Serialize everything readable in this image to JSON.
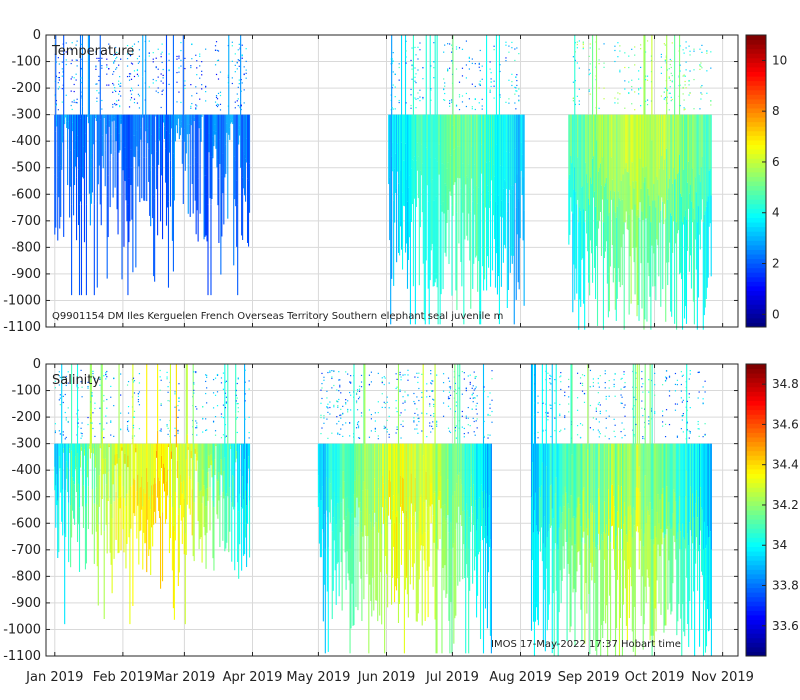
{
  "chart_data": [
    {
      "type": "scatter",
      "variable": "Temperature",
      "title": "Temperature",
      "annotation": "Q9901154 DM Iles Kerguelen French Overseas Territory Southern elephant seal juvenile m",
      "ylabel": "",
      "ylim": [
        -1100,
        0
      ],
      "yticks": [
        0,
        -100,
        -200,
        -300,
        -400,
        -500,
        -600,
        -700,
        -800,
        -900,
        -1000,
        -1100
      ],
      "colorbar": {
        "range": [
          -0.5,
          11
        ],
        "ticks": [
          0,
          2,
          4,
          6,
          8,
          10
        ],
        "colormap": "jet"
      },
      "segments": [
        {
          "name": "deployment-1",
          "start_day": 1,
          "end_day": 90,
          "min_depth": -980,
          "typical_depth": -550,
          "value_shallow": 2.5,
          "value_mid": 2.2,
          "value_deep": 2.0
        },
        {
          "name": "deployment-2",
          "start_day": 153,
          "end_day": 215,
          "min_depth": -1090,
          "typical_depth": -750,
          "value_shallow": 3.0,
          "value_mid": 5.0,
          "value_deep": 4.5
        },
        {
          "name": "deployment-3",
          "start_day": 235,
          "end_day": 300,
          "min_depth": -1110,
          "typical_depth": -850,
          "value_shallow": 4.5,
          "value_mid": 6.0,
          "value_deep": 3.5
        }
      ]
    },
    {
      "type": "scatter",
      "variable": "Salinity",
      "title": "Salinity",
      "annotation": "IMOS 17-May-2022 17:37 Hobart time",
      "ylabel": "",
      "ylim": [
        -1100,
        0
      ],
      "yticks": [
        0,
        -100,
        -200,
        -300,
        -400,
        -500,
        -600,
        -700,
        -800,
        -900,
        -1000,
        -1100
      ],
      "colorbar": {
        "range": [
          33.45,
          34.9
        ],
        "ticks": [
          33.6,
          33.8,
          34,
          34.2,
          34.4,
          34.6,
          34.8
        ],
        "colormap": "jet"
      },
      "segments": [
        {
          "name": "deployment-1",
          "start_day": 1,
          "end_day": 90,
          "min_depth": -980,
          "typical_depth": -550,
          "value_shallow": 33.9,
          "value_mid": 34.35,
          "value_deep": 34.6
        },
        {
          "name": "deployment-2",
          "start_day": 121,
          "end_day": 200,
          "min_depth": -1090,
          "typical_depth": -750,
          "value_shallow": 33.9,
          "value_mid": 34.3,
          "value_deep": 34.45
        },
        {
          "name": "deployment-3",
          "start_day": 218,
          "end_day": 300,
          "min_depth": -1100,
          "typical_depth": -850,
          "value_shallow": 33.9,
          "value_mid": 34.2,
          "value_deep": 34.45
        }
      ]
    }
  ],
  "x_axis": {
    "range_days": [
      -3,
      312
    ],
    "ticks": [
      {
        "day": 1,
        "label": "Jan 2019"
      },
      {
        "day": 32,
        "label": "Feb 2019"
      },
      {
        "day": 60,
        "label": "Mar 2019"
      },
      {
        "day": 91,
        "label": "Apr 2019"
      },
      {
        "day": 121,
        "label": "May 2019"
      },
      {
        "day": 152,
        "label": "Jun 2019"
      },
      {
        "day": 182,
        "label": "Jul 2019"
      },
      {
        "day": 213,
        "label": "Aug 2019"
      },
      {
        "day": 244,
        "label": "Sep 2019"
      },
      {
        "day": 274,
        "label": "Oct 2019"
      },
      {
        "day": 305,
        "label": "Nov 2019"
      }
    ]
  }
}
